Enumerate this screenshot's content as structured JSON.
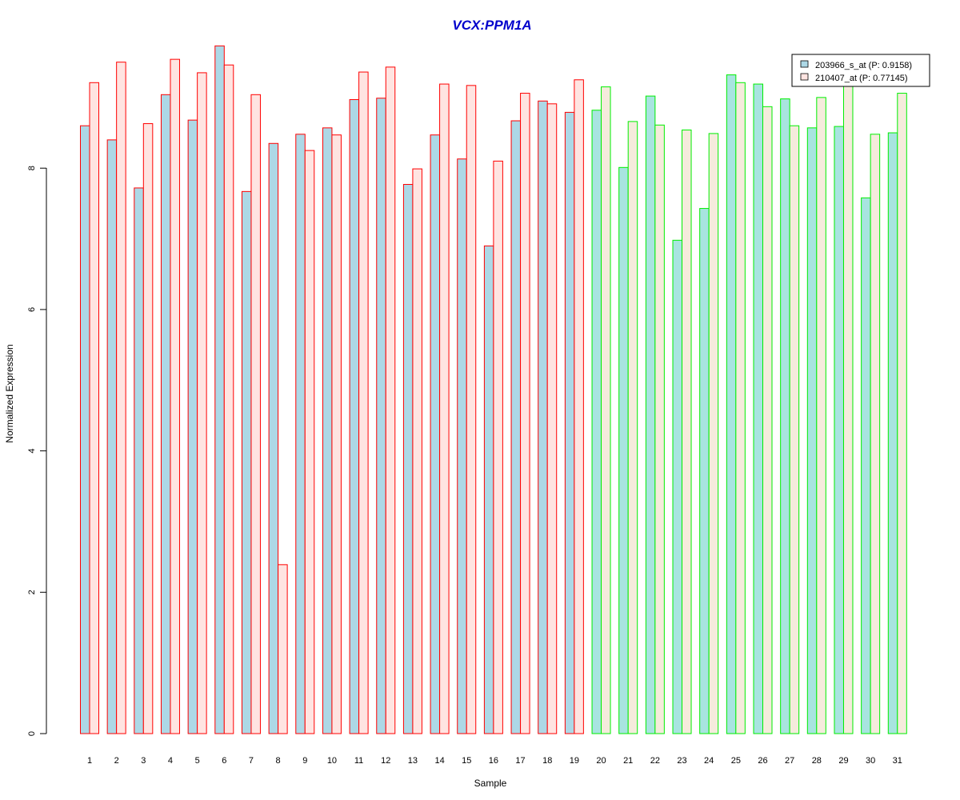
{
  "chart_data": {
    "type": "bar",
    "title": "VCX:PPM1A",
    "xlabel": "Sample",
    "ylabel": "Normalized Expression",
    "ylim": [
      0,
      9.9
    ],
    "yticks": [
      "0",
      "2",
      "4",
      "6",
      "8"
    ],
    "grid": false,
    "legend_position": "top-right",
    "categories": [
      "1",
      "2",
      "3",
      "4",
      "5",
      "6",
      "7",
      "8",
      "9",
      "10",
      "11",
      "12",
      "13",
      "14",
      "15",
      "16",
      "17",
      "18",
      "19",
      "20",
      "21",
      "22",
      "23",
      "24",
      "25",
      "26",
      "27",
      "28",
      "29",
      "30",
      "31"
    ],
    "groups": [
      {
        "samples": 19,
        "border_color": "#ff0000"
      },
      {
        "samples": 12,
        "border_color": "#00ee00"
      }
    ],
    "series": [
      {
        "name": "203966_s_at (P: 0.9158)",
        "colors": {
          "group1": "#add8e6",
          "group2": "#a8e4e0"
        },
        "values": [
          8.6,
          8.4,
          7.72,
          9.04,
          8.68,
          9.73,
          7.67,
          8.35,
          8.48,
          8.57,
          8.97,
          8.99,
          7.77,
          8.47,
          8.13,
          6.9,
          8.67,
          8.95,
          8.79,
          8.82,
          8.01,
          9.02,
          6.98,
          7.43,
          9.32,
          9.19,
          8.98,
          8.57,
          8.59,
          7.58,
          8.5
        ]
      },
      {
        "name": "210407_at (P: 0.77145)",
        "colors": {
          "group1": "#ffe4e1",
          "group2": "#f5ebdc"
        },
        "values": [
          9.21,
          9.5,
          8.63,
          9.54,
          9.35,
          9.46,
          9.04,
          2.39,
          8.25,
          8.47,
          9.36,
          9.43,
          7.99,
          9.19,
          9.17,
          8.1,
          9.06,
          8.91,
          9.25,
          9.15,
          8.66,
          8.61,
          8.54,
          8.49,
          9.21,
          8.87,
          8.6,
          9.0,
          9.2,
          8.48,
          9.06
        ]
      }
    ]
  }
}
